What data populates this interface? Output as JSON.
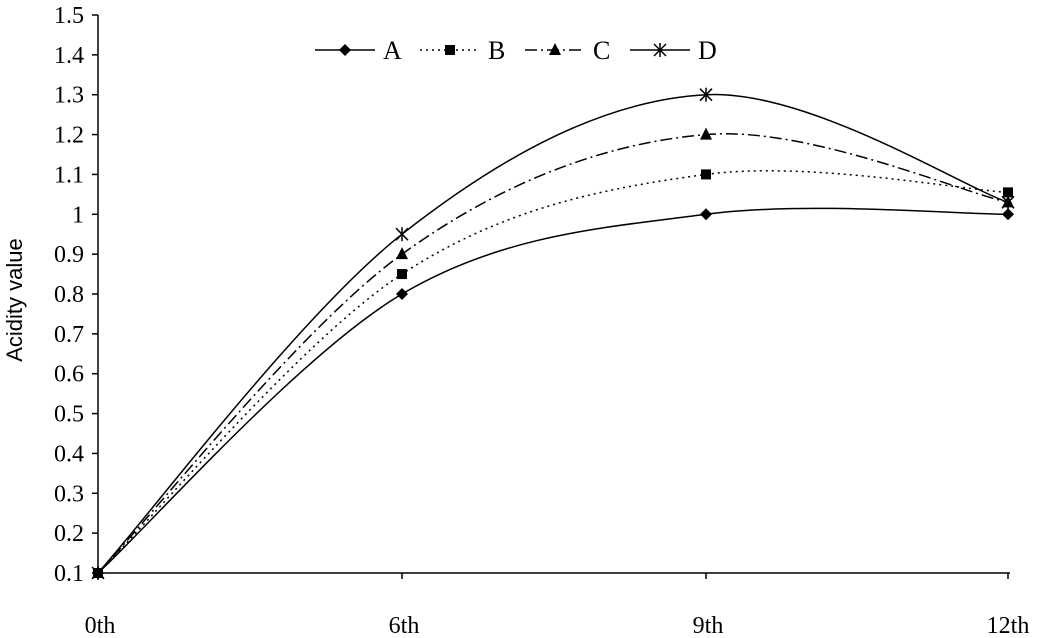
{
  "chart_data": {
    "type": "line",
    "title": "",
    "xlabel": "",
    "ylabel": "Acidity value",
    "categories": [
      "0th",
      "6th",
      "9th",
      "12th"
    ],
    "ylim": [
      0.1,
      1.5
    ],
    "yticks": [
      "0.1",
      "0.2",
      "0.3",
      "0.4",
      "0.5",
      "0.6",
      "0.7",
      "0.8",
      "0.9",
      "1",
      "1.1",
      "1.2",
      "1.3",
      "1.4",
      "1.5"
    ],
    "grid": false,
    "legend_position": "top-center",
    "series": [
      {
        "name": "A",
        "values": [
          0.1,
          0.8,
          1.0,
          1.0
        ],
        "marker": "diamond",
        "line_style": "solid",
        "color": "#000000"
      },
      {
        "name": "B",
        "values": [
          0.1,
          0.85,
          1.1,
          1.055
        ],
        "marker": "square",
        "line_style": "dotted",
        "color": "#000000"
      },
      {
        "name": "C",
        "values": [
          0.1,
          0.9,
          1.2,
          1.03
        ],
        "marker": "triangle",
        "line_style": "dash-dot",
        "color": "#000000"
      },
      {
        "name": "D",
        "values": [
          0.1,
          0.95,
          1.3,
          1.03
        ],
        "marker": "asterisk",
        "line_style": "solid",
        "color": "#000000"
      }
    ]
  }
}
